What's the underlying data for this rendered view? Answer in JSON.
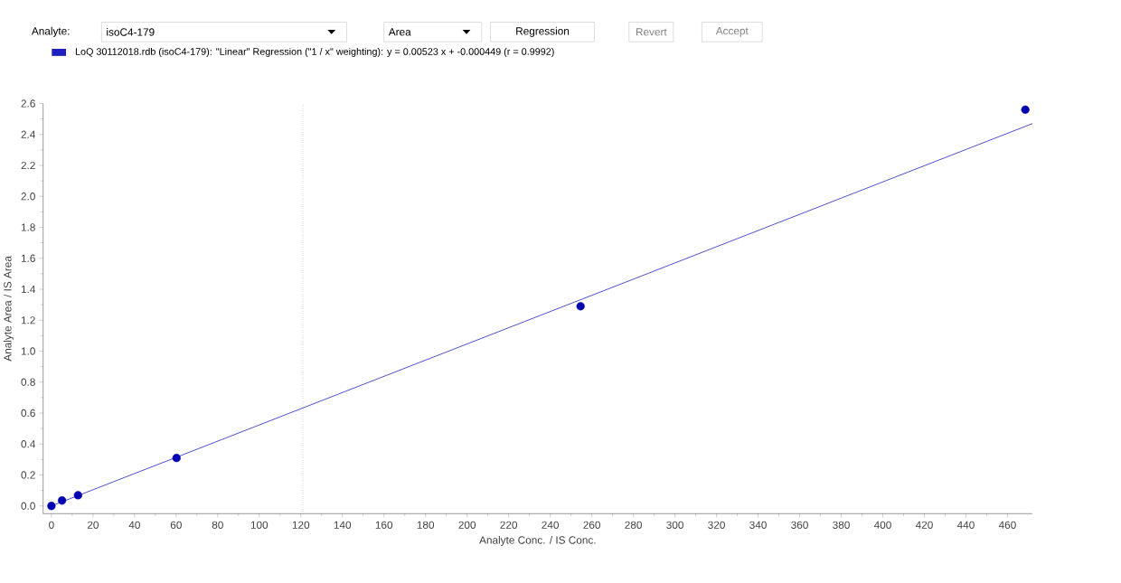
{
  "chart_data": {
    "type": "scatter",
    "xlabel": "Analyte Conc. / IS Conc.",
    "ylabel": "Analyte Area / IS Area",
    "annotations": [
      "Analyte:",
      "isoC4-179",
      "Area",
      "Regression",
      "Revert",
      "Accept"
    ],
    "series": [
      {
        "type": "line",
        "name": "LoQ 30112018.rdb (isoC4-179): \"Linear\" Regression (\"1 / x\" weighting): y = 0.00523 x + -0.000449 (r = 0.9992)",
        "color": "#2020c0",
        "x": [
          0,
          472
        ],
        "values": [
          0.0,
          2.47
        ]
      },
      {
        "color": "#0000b0",
        "marker": "circle",
        "x": [
          0,
          5.1,
          12.8,
          60.2,
          254.6,
          468.6
        ],
        "values": [
          0.0,
          0.035,
          0.069,
          0.31,
          1.29,
          2.56
        ]
      }
    ],
    "xlim": [
      -4,
      472
    ],
    "ylim": [
      -0.05,
      2.6
    ],
    "xticks": [
      0,
      20,
      40,
      60,
      80,
      100,
      120,
      140,
      160,
      180,
      200,
      220,
      240,
      260,
      280,
      300,
      320,
      340,
      360,
      380,
      400,
      420,
      440,
      460
    ],
    "yticks": [
      {
        "value": 0,
        "label": "0.0"
      },
      0.2,
      0.4,
      0.6,
      0.8,
      {
        "value": 1,
        "label": "1.0"
      },
      1.2,
      1.4,
      1.6,
      1.8,
      {
        "value": 2,
        "label": "2.0"
      },
      2.2,
      2.4,
      2.6
    ],
    "ref_lines": [
      {
        "axis": "x",
        "value": 121,
        "color": "#000000",
        "line_style": "dotted"
      }
    ],
    "grid": false,
    "legend": "top left"
  }
}
